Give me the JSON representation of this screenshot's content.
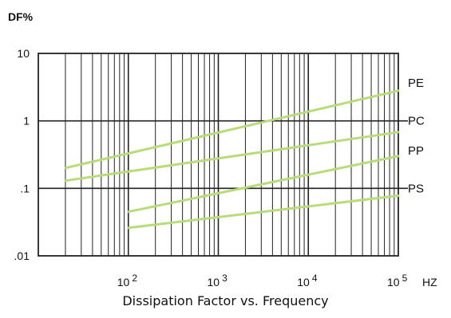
{
  "chart_data": {
    "type": "line",
    "title": "Dissipation Factor vs. Frequency",
    "ylabel": "DF%",
    "xlabel": "HZ",
    "x_scale": "log",
    "y_scale": "log",
    "xlim": [
      10,
      100000
    ],
    "ylim": [
      0.01,
      10
    ],
    "grid": true,
    "y_ticks": [
      {
        "value": 10,
        "label": "10"
      },
      {
        "value": 1,
        "label": "1"
      },
      {
        "value": 0.1,
        "label": ".1"
      },
      {
        "value": 0.01,
        "label": ".01"
      }
    ],
    "x_ticks": [
      {
        "value": 100,
        "base": "10",
        "exp": "2"
      },
      {
        "value": 1000,
        "base": "10",
        "exp": "3"
      },
      {
        "value": 10000,
        "base": "10",
        "exp": "4"
      },
      {
        "value": 100000,
        "base": "10",
        "exp": "5"
      }
    ],
    "line_color": "#b8dc78",
    "series": [
      {
        "name": "PE",
        "x": [
          20,
          100000
        ],
        "y": [
          0.2,
          2.8
        ]
      },
      {
        "name": "PC",
        "x": [
          20,
          100000
        ],
        "y": [
          0.13,
          0.68
        ]
      },
      {
        "name": "PP",
        "x": [
          100,
          100000
        ],
        "y": [
          0.045,
          0.3
        ]
      },
      {
        "name": "PS",
        "x": [
          100,
          100000
        ],
        "y": [
          0.026,
          0.078
        ]
      }
    ]
  }
}
